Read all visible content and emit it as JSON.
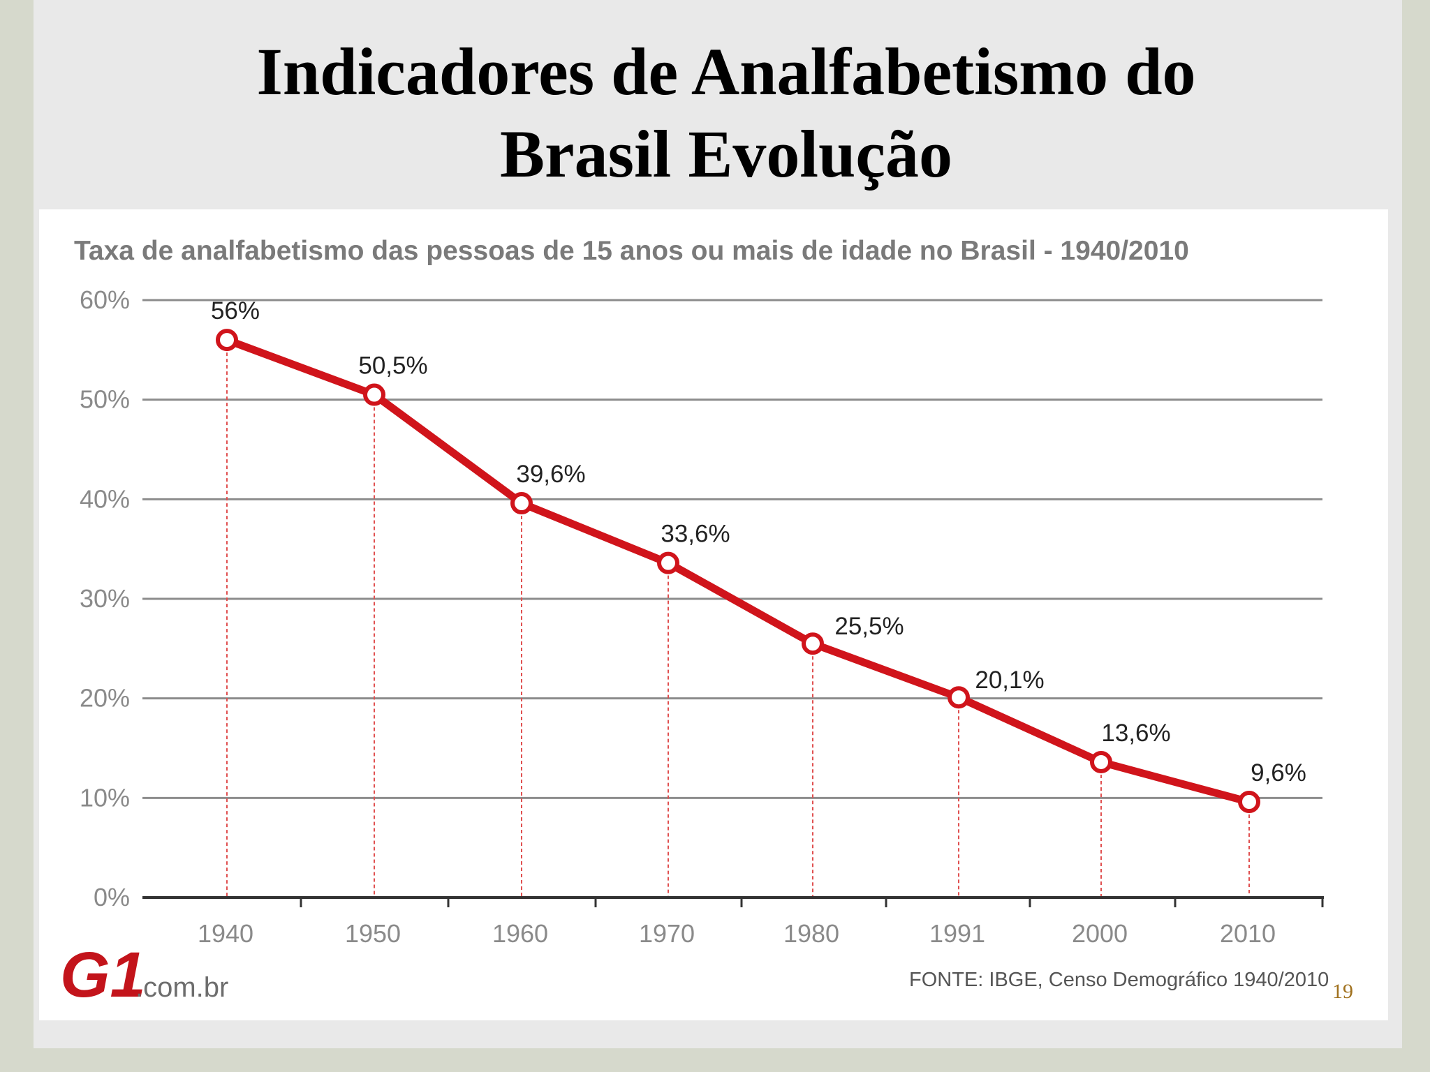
{
  "slide": {
    "title_line1": "Indicadores de Analfabetismo do",
    "title_line2": "Brasil Evolução",
    "page_number": "19"
  },
  "colors": {
    "line": "#d0141b",
    "marker_fill": "#ffffff",
    "gridline": "#8c8c8c",
    "drop_line": "#e05050"
  },
  "logo": {
    "mark": "G1",
    "suffix": ".com.br"
  },
  "chart_data": {
    "type": "line",
    "title": "Taxa de analfabetismo das pessoas de 15 anos ou mais de idade no Brasil - 1940/2010",
    "xlabel": "",
    "ylabel": "",
    "categories": [
      "1940",
      "1950",
      "1960",
      "1970",
      "1980",
      "1991",
      "2000",
      "2010"
    ],
    "values": [
      56,
      50.5,
      39.6,
      33.6,
      25.5,
      20.1,
      13.6,
      9.6
    ],
    "data_labels": [
      "56%",
      "50,5%",
      "39,6%",
      "33,6%",
      "25,5%",
      "20,1%",
      "13,6%",
      "9,6%"
    ],
    "y_ticks": [
      0,
      10,
      20,
      30,
      40,
      50,
      60
    ],
    "y_tick_labels": [
      "0%",
      "10%",
      "20%",
      "30%",
      "40%",
      "50%",
      "60%"
    ],
    "ylim": [
      0,
      60
    ],
    "grid": true,
    "source": "FONTE: IBGE, Censo Demográfico 1940/2010"
  }
}
